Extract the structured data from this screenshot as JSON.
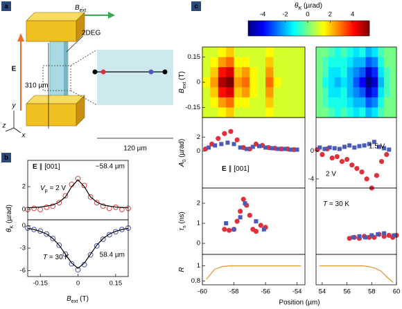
{
  "panel_labels": [
    "a",
    "b",
    "c"
  ],
  "diagram": {
    "field": [
      {
        "t": "B",
        "s": "italic"
      },
      {
        "t": "ext",
        "s": "sub"
      }
    ],
    "layer": "2DEG",
    "efield": "E",
    "length": "310 µm",
    "width": "120 µm",
    "axes": [
      "y",
      "z",
      "x"
    ]
  },
  "chart_data": [
    {
      "type": "scatter",
      "xlim": [
        -0.2,
        0.2
      ],
      "ylim": [
        -0.9,
        4.3
      ],
      "yticks": [
        0,
        2
      ],
      "ylabel": [
        {
          "t": "θ",
          "s": "italic"
        },
        {
          "t": "K",
          "s": "sub"
        },
        {
          "t": " (µrad)"
        }
      ],
      "annotations": [
        {
          "text": [
            {
              "t": "E",
              "s": "bold"
            },
            {
              "t": " ∥ [001]"
            }
          ],
          "color": "#000000"
        },
        {
          "text": "−58.4 µm",
          "color": "#d94040"
        },
        {
          "text": [
            {
              "t": "V",
              "s": "italic"
            },
            {
              "t": "p",
              "s": "sub"
            },
            {
              "t": " = 2 V"
            }
          ],
          "color": "#000000"
        }
      ],
      "series": [
        {
          "color": "#d94040",
          "marker": "circle",
          "filled": false,
          "x": [
            -0.2,
            -0.175,
            -0.15,
            -0.125,
            -0.1,
            -0.075,
            -0.05,
            -0.025,
            0,
            0.025,
            0.05,
            0.075,
            0.1,
            0.125,
            0.15,
            0.175,
            0.2
          ],
          "values": [
            0.0,
            0.1,
            0.0,
            0.2,
            0.3,
            0.6,
            1.2,
            2.2,
            2.7,
            2.1,
            1.1,
            0.6,
            0.3,
            0.1,
            0.2,
            0.0,
            0.1
          ]
        },
        {
          "color": "#000000",
          "marker": "none",
          "x": [
            -0.2,
            -0.175,
            -0.15,
            -0.125,
            -0.1,
            -0.075,
            -0.05,
            -0.025,
            0,
            0.025,
            0.05,
            0.075,
            0.1,
            0.125,
            0.15,
            0.175,
            0.2
          ],
          "values": [
            0.15,
            0.18,
            0.22,
            0.3,
            0.4,
            0.65,
            1.1,
            2.0,
            2.6,
            2.0,
            1.1,
            0.65,
            0.4,
            0.3,
            0.22,
            0.18,
            0.15
          ]
        }
      ]
    },
    {
      "type": "scatter",
      "xlim": [
        -0.2,
        0.2
      ],
      "ylim": [
        -6.8,
        0.8
      ],
      "yticks": [
        0,
        -3,
        -6
      ],
      "xticks": [
        -0.15,
        0,
        0.15
      ],
      "xlabel": [
        {
          "t": "B",
          "s": "italic"
        },
        {
          "t": "ext",
          "s": "sub"
        },
        {
          "t": " (T)"
        }
      ],
      "annotations": [
        {
          "text": [
            {
              "t": "T",
              "s": "italic"
            },
            {
              "t": " = 30 K"
            }
          ],
          "color": "#000000"
        },
        {
          "text": "58.4 µm",
          "color": "#4050a8"
        }
      ],
      "series": [
        {
          "color": "#4050a8",
          "marker": "circle",
          "filled": false,
          "x": [
            -0.2,
            -0.175,
            -0.15,
            -0.125,
            -0.1,
            -0.075,
            -0.05,
            -0.025,
            0,
            0.025,
            0.05,
            0.075,
            0.1,
            0.125,
            0.15,
            0.175,
            0.2
          ],
          "values": [
            -0.3,
            -0.5,
            -0.7,
            -1.1,
            -1.7,
            -2.6,
            -3.8,
            -5.1,
            -5.9,
            -5.2,
            -3.9,
            -2.7,
            -1.8,
            -1.2,
            -0.8,
            -0.5,
            -0.3
          ]
        },
        {
          "color": "#000000",
          "marker": "none",
          "x": [
            -0.2,
            -0.175,
            -0.15,
            -0.125,
            -0.1,
            -0.075,
            -0.05,
            -0.025,
            0,
            0.025,
            0.05,
            0.075,
            0.1,
            0.125,
            0.15,
            0.175,
            0.2
          ],
          "values": [
            -0.35,
            -0.5,
            -0.75,
            -1.1,
            -1.7,
            -2.6,
            -3.8,
            -5.0,
            -5.7,
            -5.0,
            -3.8,
            -2.6,
            -1.7,
            -1.1,
            -0.75,
            -0.5,
            -0.35
          ]
        }
      ]
    },
    {
      "type": "colorbar",
      "label": [
        {
          "t": "θ",
          "s": "italic"
        },
        {
          "t": "K",
          "s": "sub"
        },
        {
          "t": " (µrad)"
        }
      ],
      "zlim": [
        -5.3,
        5.5
      ],
      "zticks": [
        -4,
        -2,
        0,
        2,
        4
      ],
      "colormap": [
        "#00007f",
        "#0000ff",
        "#007fff",
        "#00ffff",
        "#7fff7f",
        "#ffff00",
        "#ff7f00",
        "#ff0000",
        "#7f0000"
      ]
    },
    {
      "type": "heatmap",
      "xlim": [
        -60,
        -53.5
      ],
      "ylim": [
        -0.21,
        0.21
      ],
      "yticks": [
        0.15,
        0,
        -0.15
      ],
      "ylabel": [
        {
          "t": "B",
          "s": "italic"
        },
        {
          "t": "ext",
          "s": "sub"
        },
        {
          "t": " (T)"
        }
      ],
      "x": [
        -59.75,
        -59.25,
        -58.75,
        -58.25,
        -57.75,
        -57.25,
        -56.75,
        -56.25,
        -55.75,
        -55.25,
        -54.75,
        -54.25,
        -53.75
      ],
      "y": [
        0.18,
        0.12,
        0.06,
        0,
        -0.06,
        -0.12,
        -0.18
      ],
      "z": [
        [
          1,
          1,
          1.5,
          2,
          1,
          1,
          1,
          1,
          1.5,
          1,
          1,
          1,
          1
        ],
        [
          1,
          1.5,
          2.5,
          3,
          1.5,
          1.5,
          1,
          1,
          2,
          1,
          1,
          1,
          1
        ],
        [
          1,
          2,
          4,
          4.5,
          2,
          2.5,
          1.5,
          1,
          2.5,
          1,
          1,
          1,
          1
        ],
        [
          1.5,
          2.5,
          5,
          5.5,
          2.5,
          3,
          1.5,
          1,
          3,
          1.5,
          1,
          1,
          1
        ],
        [
          1,
          2,
          4,
          4.5,
          2,
          2.5,
          1.5,
          1,
          2.5,
          1,
          1,
          1,
          1
        ],
        [
          1,
          1.5,
          2.5,
          3,
          1.5,
          1.5,
          1,
          1,
          2,
          1,
          1,
          1,
          1
        ],
        [
          1,
          1,
          1.5,
          2,
          1,
          1,
          1,
          1,
          1.5,
          1,
          1,
          1,
          1
        ]
      ]
    },
    {
      "type": "heatmap",
      "xlim": [
        53.5,
        60
      ],
      "ylim": [
        -0.21,
        0.21
      ],
      "x": [
        53.75,
        54.25,
        54.75,
        55.25,
        55.75,
        56.25,
        56.75,
        57.25,
        57.75,
        58.25,
        58.75,
        59.25,
        59.75
      ],
      "y": [
        0.18,
        0.12,
        0.06,
        0,
        -0.06,
        -0.12,
        -0.18
      ],
      "z": [
        [
          0,
          0,
          -0.5,
          -1,
          -0.5,
          -1,
          -1.5,
          -1,
          -2,
          -1.5,
          -0.5,
          0,
          0
        ],
        [
          0,
          -0.5,
          -1,
          -1,
          -1,
          -1.5,
          -2,
          -2,
          -3,
          -2.5,
          -1,
          0,
          0
        ],
        [
          0,
          -0.5,
          -1.5,
          -1.5,
          -1,
          -2,
          -2.5,
          -3,
          -4.5,
          -3.5,
          -1.5,
          -0.5,
          0
        ],
        [
          0,
          -1,
          -1.5,
          -2,
          -1.5,
          -2,
          -3,
          -4,
          -5.5,
          -4.5,
          -2,
          -0.5,
          0
        ],
        [
          0,
          -0.5,
          -1.5,
          -1.5,
          -1,
          -2,
          -2.5,
          -3,
          -4.5,
          -3.5,
          -1.5,
          -0.5,
          0
        ],
        [
          0,
          -0.5,
          -1,
          -1,
          -1,
          -1.5,
          -2,
          -2,
          -3,
          -2.5,
          -1,
          0,
          0
        ],
        [
          0,
          0,
          -0.5,
          -1,
          -0.5,
          -1,
          -1.5,
          -1,
          -2,
          -1.5,
          -0.5,
          0,
          0
        ]
      ]
    },
    {
      "type": "scatter",
      "xlim": [
        -60,
        -53.5
      ],
      "ylim": [
        -5.3,
        4.8
      ],
      "yticks": [
        2,
        0
      ],
      "ylabel": [
        {
          "t": "A",
          "s": "italic"
        },
        {
          "t": "0",
          "s": "sub"
        },
        {
          "t": " (µrad)"
        }
      ],
      "annotations": [
        {
          "text": [
            {
              "t": "E",
              "s": "bold"
            },
            {
              "t": " ∥ [001]"
            }
          ],
          "color": "#000000"
        }
      ],
      "series": [
        {
          "color": "#e0303a",
          "marker": "circle",
          "filled": true,
          "x": [
            -59.8,
            -59.4,
            -59,
            -58.6,
            -58.2,
            -57.8,
            -57.4,
            -57,
            -56.6,
            -56.2,
            -55.8,
            -55.4,
            -55,
            -54.6,
            -54.2
          ],
          "values": [
            0.3,
            1,
            1.8,
            2.5,
            2.8,
            1.6,
            0.5,
            0.3,
            1,
            0.8,
            0.5,
            0.4,
            0.3,
            0.3,
            0.2
          ]
        },
        {
          "color": "#4a5ab8",
          "marker": "square",
          "filled": true,
          "x": [
            -59.6,
            -59.2,
            -58.8,
            -58.4,
            -58,
            -57.6,
            -57.2,
            -56.8,
            -56.4,
            -56,
            -55.6,
            -55.2,
            -54.8,
            -54.4,
            -54
          ],
          "values": [
            0.5,
            0.8,
            1,
            1.2,
            1,
            0.5,
            0.3,
            0.6,
            0.7,
            0.5,
            0.4,
            0.3,
            0.3,
            0.2,
            0.2
          ]
        }
      ]
    },
    {
      "type": "scatter",
      "xlim": [
        53.5,
        60
      ],
      "ylim": [
        -5.3,
        4.8
      ],
      "yticks": [
        0,
        -4
      ],
      "series": [
        {
          "name": "2 V",
          "color": "#e0303a",
          "marker": "circle",
          "filled": true,
          "x": [
            53.6,
            54,
            54.4,
            54.8,
            55.2,
            55.6,
            56,
            56.4,
            56.8,
            57.2,
            57.6,
            58,
            58.4,
            58.8,
            59.2
          ],
          "values": [
            0.2,
            -0.5,
            0.3,
            -1,
            -0.8,
            -1.5,
            -1.2,
            -2,
            -2.5,
            -3,
            -4,
            -5.3,
            -3.5,
            -1.5,
            -0.5
          ]
        },
        {
          "name": "1.5 V",
          "color": "#4a5ab8",
          "marker": "square",
          "filled": true,
          "x": [
            53.8,
            54.2,
            54.6,
            55,
            55.4,
            55.8,
            56.2,
            56.6,
            57,
            57.4,
            57.8,
            58.2,
            58.6,
            59,
            59.4
          ],
          "values": [
            0.5,
            0.3,
            0.5,
            0.4,
            0.3,
            0.6,
            0.8,
            0.5,
            0.7,
            0.8,
            1,
            1.3,
            0.6,
            0.4,
            0.2
          ]
        }
      ]
    },
    {
      "type": "scatter",
      "xlim": [
        -60,
        -53.5
      ],
      "ylim": [
        -0.55,
        2.76
      ],
      "yticks": [
        2,
        1,
        0
      ],
      "ylabel": [
        {
          "t": "τ",
          "s": "italic"
        },
        {
          "t": "s",
          "s": "sub"
        },
        {
          "t": " (ns)"
        }
      ],
      "series": [
        {
          "color": "#e0303a",
          "marker": "circle",
          "filled": true,
          "x": [
            -58.6,
            -58.3,
            -58,
            -57.8,
            -57.6,
            -57.4,
            -57.2,
            -57,
            -56.8,
            -56.6,
            -56.3,
            -56
          ],
          "values": [
            0.7,
            0.65,
            0.7,
            1.1,
            1.6,
            2.2,
            1.9,
            1.4,
            0.7,
            0.6,
            0.9,
            0.8
          ]
        },
        {
          "color": "#4a5ab8",
          "marker": "square",
          "filled": true,
          "x": [
            -58.5,
            -58,
            -57.6,
            -57.3,
            -56.6,
            -56.1
          ],
          "values": [
            1,
            0.7,
            1.3,
            2,
            1.1,
            0.7
          ]
        }
      ]
    },
    {
      "type": "scatter",
      "xlim": [
        53.5,
        60
      ],
      "ylim": [
        -0.55,
        2.76
      ],
      "annotations": [
        {
          "text": [
            {
              "t": "T",
              "s": "italic"
            },
            {
              "t": " = 30 K"
            }
          ],
          "color": "#000000"
        }
      ],
      "series": [
        {
          "color": "#e0303a",
          "marker": "circle",
          "filled": true,
          "x": [
            56.2,
            56.6,
            57,
            57.4,
            57.8,
            58.2,
            58.6,
            59,
            59.4,
            59.7,
            60
          ],
          "values": [
            0.25,
            0.3,
            0.25,
            0.35,
            0.3,
            0.3,
            0.45,
            0.35,
            0.4,
            0.3,
            0.4
          ]
        },
        {
          "color": "#4a5ab8",
          "marker": "square",
          "filled": true,
          "x": [
            56.5,
            57,
            57.5,
            58,
            58.5,
            59,
            59.8
          ],
          "values": [
            0.3,
            0.35,
            0.3,
            0.4,
            0.45,
            0.5,
            0.4
          ]
        }
      ]
    },
    {
      "type": "scatter",
      "xlim": [
        -60,
        -53.5
      ],
      "ylim": [
        0.75,
        1.15
      ],
      "yticks": [
        1,
        0.8
      ],
      "xticks": [
        -60,
        -58,
        -56,
        -54
      ],
      "ylabel": [
        {
          "t": "R",
          "s": "italic"
        }
      ],
      "xlabel": "Position (µm)",
      "series": [
        {
          "color": "#e8902a",
          "marker": "none",
          "x": [
            -59.75,
            -59.25,
            -58.75,
            -58.25,
            -57.75,
            -57.25,
            -56.75,
            -56.25,
            -55.75,
            -55.25,
            -54.75,
            -54.25,
            -53.75
          ],
          "values": [
            0.82,
            0.95,
            0.99,
            1,
            1,
            1,
            1,
            1,
            1,
            1,
            1,
            1,
            1
          ]
        }
      ]
    },
    {
      "type": "scatter",
      "xlim": [
        53.5,
        60
      ],
      "ylim": [
        0.75,
        1.15
      ],
      "xticks": [
        54,
        56,
        58,
        60
      ],
      "series": [
        {
          "color": "#e8902a",
          "marker": "none",
          "x": [
            53.75,
            54.25,
            54.75,
            55.25,
            55.75,
            56.25,
            56.75,
            57.25,
            57.75,
            58.25,
            58.75,
            59.25,
            59.75
          ],
          "values": [
            1,
            1,
            1,
            1,
            1,
            1,
            1,
            1,
            0.99,
            0.97,
            0.93,
            0.85,
            0.78
          ]
        }
      ]
    }
  ]
}
